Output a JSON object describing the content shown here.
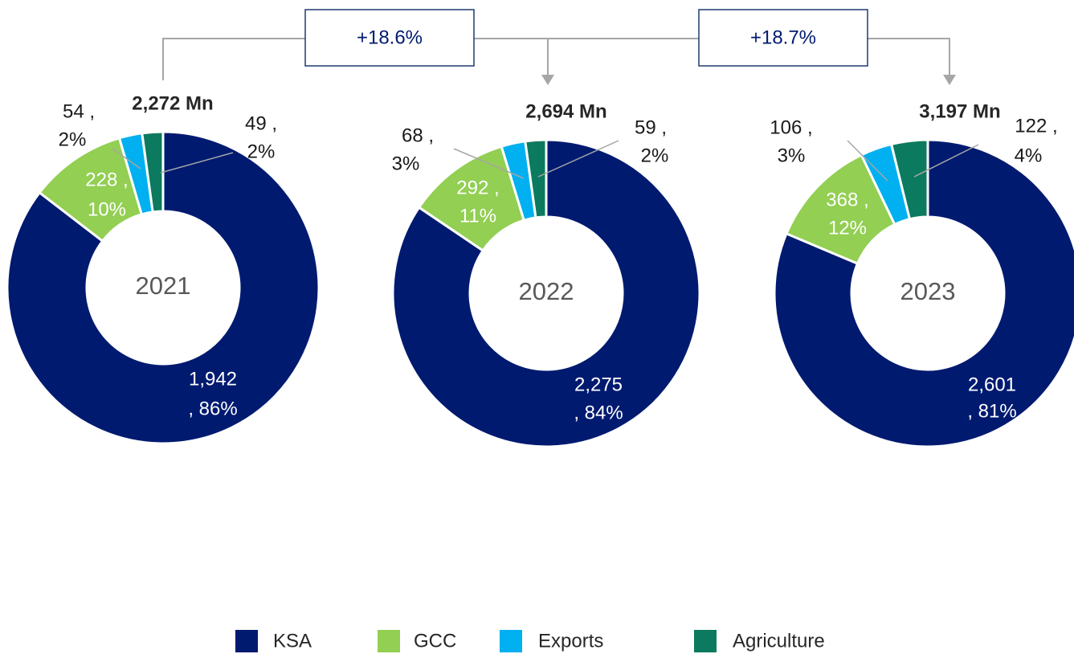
{
  "annotations": [
    "+18.6%",
    "+18.7%"
  ],
  "chart_data": [
    {
      "type": "donut",
      "center_label": "2021",
      "total": "2,272 Mn",
      "categories": [
        "KSA",
        "GCC",
        "Exports",
        "Agriculture"
      ],
      "colors": [
        "#001a70",
        "#92cf52",
        "#00b0f0",
        "#0c7a5e"
      ],
      "values": [
        1942,
        228,
        54,
        49
      ],
      "value_labels": [
        [
          "1,942",
          ", 86%"
        ],
        [
          "228 ,",
          "10%"
        ],
        [
          "54 ,",
          "2%"
        ],
        [
          "49 ,",
          "2%"
        ]
      ]
    },
    {
      "type": "donut",
      "center_label": "2022",
      "total": "2,694 Mn",
      "categories": [
        "KSA",
        "GCC",
        "Exports",
        "Agriculture"
      ],
      "colors": [
        "#001a70",
        "#92cf52",
        "#00b0f0",
        "#0c7a5e"
      ],
      "values": [
        2275,
        292,
        68,
        59
      ],
      "value_labels": [
        [
          "2,275",
          ", 84%"
        ],
        [
          "292 ,",
          "11%"
        ],
        [
          "68 ,",
          "3%"
        ],
        [
          "59 ,",
          "2%"
        ]
      ]
    },
    {
      "type": "donut",
      "center_label": "2023",
      "total": "3,197 Mn",
      "categories": [
        "KSA",
        "GCC",
        "Exports",
        "Agriculture"
      ],
      "colors": [
        "#001a70",
        "#92cf52",
        "#00b0f0",
        "#0c7a5e"
      ],
      "values": [
        2601,
        368,
        106,
        122
      ],
      "value_labels": [
        [
          "2,601",
          ", 81%"
        ],
        [
          "368 ,",
          "12%"
        ],
        [
          "106 ,",
          "3%"
        ],
        [
          "122 ,",
          "4%"
        ]
      ]
    }
  ]
}
